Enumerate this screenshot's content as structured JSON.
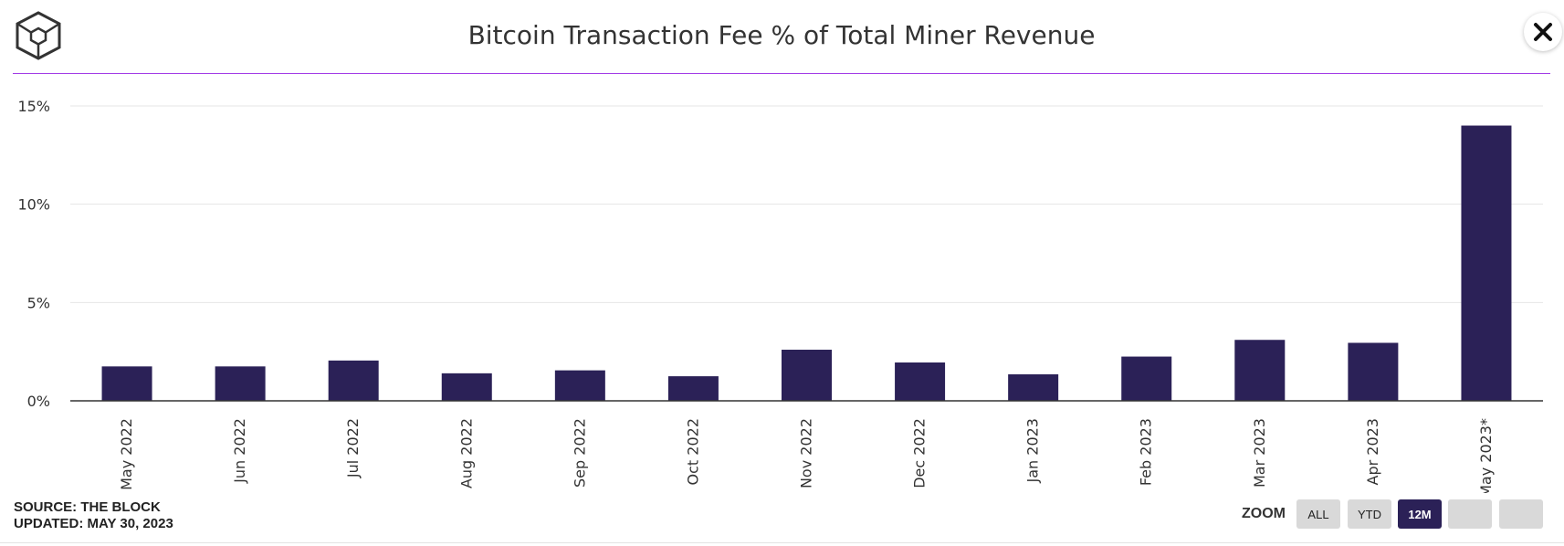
{
  "header": {
    "title": "Bitcoin Transaction Fee % of Total Miner Revenue",
    "logo_icon": "the-block-cube-logo",
    "close_icon": "close-icon"
  },
  "chart_data": {
    "type": "bar",
    "title": "Bitcoin Transaction Fee % of Total Miner Revenue",
    "xlabel": "",
    "ylabel": "",
    "categories": [
      "May 2022",
      "Jun 2022",
      "Jul 2022",
      "Aug 2022",
      "Sep 2022",
      "Oct 2022",
      "Nov 2022",
      "Dec 2022",
      "Jan 2023",
      "Feb 2023",
      "Mar 2023",
      "Apr 2023",
      "May 2023*"
    ],
    "values": [
      1.75,
      1.75,
      2.05,
      1.4,
      1.55,
      1.25,
      2.6,
      1.95,
      1.35,
      2.25,
      3.1,
      2.95,
      14.0
    ],
    "ylim": [
      0,
      15
    ],
    "yticks": [
      0,
      5,
      10,
      15
    ],
    "ytick_labels": [
      "0%",
      "5%",
      "10%",
      "15%"
    ],
    "bar_color": "#2b2157",
    "grid": true,
    "legend": "none"
  },
  "footer": {
    "source": "SOURCE: THE BLOCK",
    "updated": "UPDATED: MAY 30, 2023"
  },
  "zoom": {
    "label": "ZOOM",
    "buttons": [
      "ALL",
      "YTD",
      "12M",
      "",
      ""
    ],
    "selected": "12M"
  }
}
